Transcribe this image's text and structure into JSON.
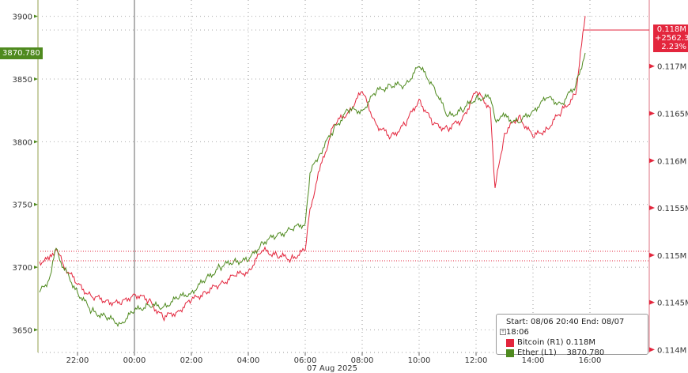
{
  "chart_data": {
    "type": "line",
    "title": "",
    "xlabel": "",
    "date_label": "07 Aug 2025",
    "x_ticks": [
      "22:00",
      "00:00",
      "02:00",
      "04:00",
      "06:00",
      "08:00",
      "10:00",
      "12:00",
      "14:00",
      "16:00"
    ],
    "left_axis": {
      "ticks": [
        "3650",
        "3700",
        "3750",
        "3800",
        "3850",
        "3900"
      ],
      "range": [
        3632,
        3913
      ]
    },
    "right_axis": {
      "ticks": [
        "0.114M",
        "0.1145M",
        "0.115M",
        "0.1155M",
        "0.116M",
        "0.1165M",
        "0.117M"
      ],
      "range": [
        0.11397,
        0.1177
      ]
    },
    "x": [
      "20:40",
      "21:00",
      "21:15",
      "21:30",
      "22:00",
      "22:30",
      "23:00",
      "23:30",
      "00:00",
      "00:30",
      "01:00",
      "01:30",
      "02:00",
      "02:30",
      "03:00",
      "03:30",
      "04:00",
      "04:30",
      "05:00",
      "05:30",
      "06:00",
      "06:10",
      "06:30",
      "07:00",
      "07:30",
      "08:00",
      "08:30",
      "09:00",
      "09:30",
      "10:00",
      "10:30",
      "11:00",
      "11:30",
      "12:00",
      "12:30",
      "12:40",
      "13:00",
      "13:30",
      "14:00",
      "14:30",
      "15:00",
      "15:30",
      "15:50"
    ],
    "series": [
      {
        "name": "Bitcoin (R1)",
        "axis": "right",
        "color": "#e3263d",
        "values": [
          0.11493,
          0.11495,
          0.11507,
          0.1149,
          0.11469,
          0.11456,
          0.11452,
          0.11448,
          0.11459,
          0.11452,
          0.11434,
          0.1144,
          0.11452,
          0.11461,
          0.11469,
          0.11478,
          0.11483,
          0.11505,
          0.115,
          0.11496,
          0.11505,
          0.11549,
          0.11589,
          0.11638,
          0.11651,
          0.11673,
          0.11638,
          0.11625,
          0.11638,
          0.11665,
          0.11638,
          0.11634,
          0.11643,
          0.11673,
          0.11656,
          0.11571,
          0.11629,
          0.11647,
          0.11625,
          0.11634,
          0.11652,
          0.1167,
          0.11753
        ]
      },
      {
        "name": "Ether (L1)",
        "axis": "left",
        "color": "#4f8a1f",
        "values": [
          3680,
          3690,
          3715,
          3700,
          3680,
          3665,
          3660,
          3655,
          3665,
          3670,
          3668,
          3675,
          3680,
          3690,
          3700,
          3705,
          3705,
          3720,
          3725,
          3730,
          3735,
          3775,
          3790,
          3810,
          3825,
          3825,
          3840,
          3845,
          3845,
          3860,
          3845,
          3820,
          3825,
          3835,
          3835,
          3818,
          3820,
          3815,
          3825,
          3835,
          3830,
          3845,
          3870.78
        ]
      }
    ],
    "reference_lines_right": [
      0.11504,
      0.11494
    ],
    "grid": true,
    "legend_position": "bottom-right"
  },
  "legend": {
    "range_text": "Start: 08/06 20:40 End: 08/07 18:06",
    "bitcoin_label": "Bitcoin (R1)",
    "bitcoin_value": "0.118M",
    "ether_label": "Ether (L1)",
    "ether_value": "3870.780"
  },
  "flags": {
    "ether_last": "3870.780",
    "btc_last": "0.118M",
    "btc_change": "+2562.30",
    "btc_pct": "2.23%"
  }
}
